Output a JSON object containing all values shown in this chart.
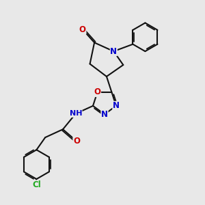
{
  "bg": "#e8e8e8",
  "bc": "#111111",
  "bw": 1.5,
  "colors": {
    "O": "#cc0000",
    "N": "#0000cc",
    "Cl": "#22aa22",
    "H": "#558888"
  },
  "fs": 8.5
}
